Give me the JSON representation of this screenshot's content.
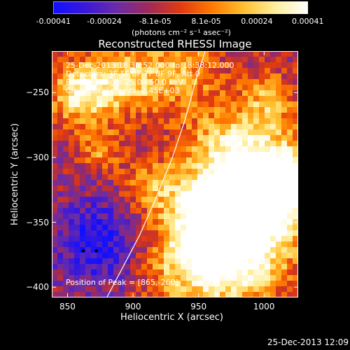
{
  "colorbar": {
    "tick_labels": [
      "-0.00041",
      "-0.00024",
      "-8.1e-05",
      "8.1e-05",
      "0.00024",
      "0.00041"
    ],
    "unit_label": "(photons cm⁻² s⁻¹ asec⁻²)",
    "colors": [
      "#1010ff",
      "#3a18d8",
      "#6a2ca8",
      "#a02a58",
      "#e03a10",
      "#ff7a00",
      "#ffc030",
      "#fff0a0",
      "#ffffff"
    ]
  },
  "chart_data": {
    "type": "heatmap",
    "title": "Reconstructed RHESSI Image",
    "xlabel": "Heliocentric X (arcsec)",
    "ylabel": "Heliocentric Y (arcsec)",
    "xlim": [
      838,
      1026
    ],
    "ylim": [
      -408,
      -218
    ],
    "x_ticks": [
      850,
      900,
      950,
      1000
    ],
    "y_ticks": [
      -250,
      -300,
      -350,
      -400
    ],
    "clim": [
      -0.00041,
      0.00041
    ],
    "peak": [
      865,
      -260
    ],
    "limb_points": [
      [
        880,
        -408
      ],
      [
        892,
        -385
      ],
      [
        905,
        -360
      ],
      [
        918,
        -330
      ],
      [
        930,
        -300
      ],
      [
        940,
        -270
      ],
      [
        948,
        -240
      ],
      [
        955,
        -218
      ]
    ],
    "markers": [
      [
        862,
        -372
      ],
      [
        872,
        -372
      ]
    ]
  },
  "annotations": {
    "time_range": "25-Dec-2013 18:36:52.000 to 18:38:12.000",
    "detectors": "Detectors: 3F 5F 6F 7F 8F 9F, Att 0",
    "energy": "Energy Range: 25.0 - 50.0 keV",
    "clean": "Clean    Total counts: 2.45E+03",
    "peak_position": "Position of Peak = [865,-260]"
  },
  "footer": {
    "timestamp": "25-Dec-2013 12:09"
  }
}
